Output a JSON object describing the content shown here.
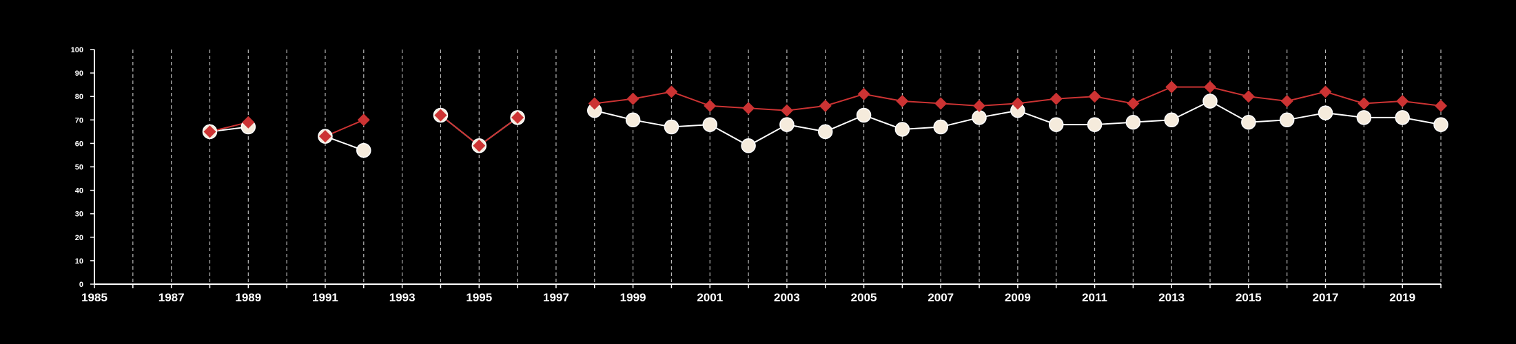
{
  "chart_data": {
    "type": "line",
    "title": "",
    "xlabel": "",
    "ylabel": "",
    "xlim": [
      1985,
      2020
    ],
    "ylim": [
      0,
      100
    ],
    "x_ticks": [
      1985,
      1986,
      1987,
      1988,
      1989,
      1990,
      1991,
      1992,
      1993,
      1994,
      1995,
      1996,
      1997,
      1998,
      1999,
      2000,
      2001,
      2002,
      2003,
      2004,
      2005,
      2006,
      2007,
      2008,
      2009,
      2010,
      2011,
      2012,
      2013,
      2014,
      2015,
      2016,
      2017,
      2018,
      2019,
      2020
    ],
    "x_tick_labels": [
      "1985",
      "1987",
      "1989",
      "1991",
      "1993",
      "1995",
      "1997",
      "1999",
      "2001",
      "2003",
      "2005",
      "2007",
      "2009",
      "2011",
      "2013",
      "2015",
      "2017",
      "2019"
    ],
    "y_ticks": [
      0,
      10,
      20,
      30,
      40,
      50,
      60,
      70,
      80,
      90,
      100
    ],
    "y_tick_labels": [
      "0",
      "10",
      "20",
      "30",
      "40",
      "50",
      "60",
      "70",
      "80",
      "90",
      "100"
    ],
    "grid": "vertical dashed lines at every year",
    "legend": "none",
    "series": [
      {
        "marker": "circle",
        "color": "#ffffff",
        "fill": "#f5ebdc",
        "points": [
          [
            1988,
            65
          ],
          [
            1989,
            67
          ],
          null,
          [
            1991,
            63
          ],
          [
            1992,
            57
          ],
          null,
          [
            1994,
            72
          ],
          [
            1995,
            59
          ],
          [
            1996,
            71
          ],
          null,
          [
            1998,
            74
          ],
          [
            1999,
            70
          ],
          [
            2000,
            67
          ],
          [
            2001,
            68
          ],
          [
            2002,
            59
          ],
          [
            2003,
            68
          ],
          [
            2004,
            65
          ],
          [
            2005,
            72
          ],
          [
            2006,
            66
          ],
          [
            2007,
            67
          ],
          [
            2008,
            71
          ],
          [
            2009,
            74
          ],
          [
            2010,
            68
          ],
          [
            2011,
            68
          ],
          [
            2012,
            69
          ],
          [
            2013,
            70
          ],
          [
            2014,
            78
          ],
          [
            2015,
            69
          ],
          [
            2016,
            70
          ],
          [
            2017,
            73
          ],
          [
            2018,
            71
          ],
          [
            2019,
            71
          ],
          [
            2020,
            68
          ]
        ]
      },
      {
        "marker": "diamond",
        "color": "#cc3333",
        "points": [
          [
            1988,
            65
          ],
          [
            1989,
            69
          ],
          null,
          [
            1991,
            63
          ],
          [
            1992,
            70
          ],
          null,
          [
            1994,
            72
          ],
          [
            1995,
            59
          ],
          [
            1996,
            71
          ],
          null,
          [
            1998,
            77
          ],
          [
            1999,
            79
          ],
          [
            2000,
            82
          ],
          [
            2001,
            76
          ],
          [
            2002,
            75
          ],
          [
            2003,
            74
          ],
          [
            2004,
            76
          ],
          [
            2005,
            81
          ],
          [
            2006,
            78
          ],
          [
            2007,
            77
          ],
          [
            2008,
            76
          ],
          [
            2009,
            77
          ],
          [
            2010,
            79
          ],
          [
            2011,
            80
          ],
          [
            2012,
            77
          ],
          [
            2013,
            84
          ],
          [
            2014,
            84
          ],
          [
            2015,
            80
          ],
          [
            2016,
            78
          ],
          [
            2017,
            82
          ],
          [
            2018,
            77
          ],
          [
            2019,
            78
          ],
          [
            2020,
            76
          ]
        ]
      }
    ]
  }
}
